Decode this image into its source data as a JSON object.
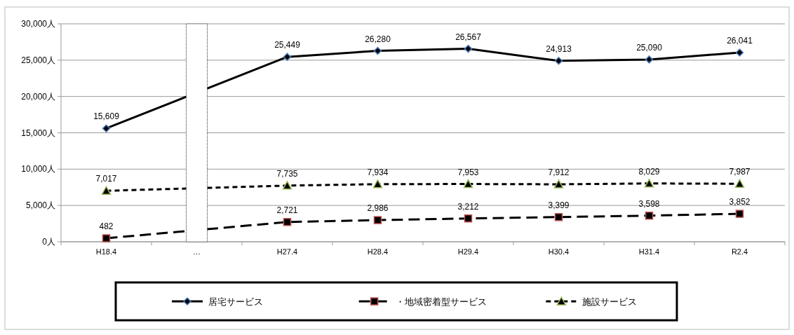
{
  "chart_data": {
    "type": "line",
    "categories": [
      "H18.4",
      "…",
      "H27.4",
      "H28.4",
      "H29.4",
      "H30.4",
      "H31.4",
      "R2.4"
    ],
    "series": [
      {
        "name": "居宅サービス",
        "color": "#4f81bd",
        "marker": "diamond",
        "line_style": "solid",
        "values": [
          15609,
          null,
          25449,
          26280,
          26567,
          24913,
          25090,
          26041
        ],
        "value_labels": [
          "15,609",
          null,
          "25,449",
          "26,280",
          "26,567",
          "24,913",
          "25,090",
          "26,041"
        ]
      },
      {
        "name": "・地域密着型サービス",
        "color": "#c0504d",
        "marker": "square",
        "line_style": "dashed",
        "values": [
          482,
          null,
          2721,
          2986,
          3212,
          3399,
          3598,
          3852
        ],
        "value_labels": [
          "482",
          null,
          "2,721",
          "2,986",
          "3,212",
          "3,399",
          "3,598",
          "3,852"
        ]
      },
      {
        "name": "施設サービス",
        "color": "#9bbb59",
        "marker": "triangle",
        "line_style": "dotted",
        "values": [
          7017,
          null,
          7735,
          7934,
          7953,
          7912,
          8029,
          7987
        ],
        "value_labels": [
          "7,017",
          null,
          "7,735",
          "7,934",
          "7,953",
          "7,912",
          "8,029",
          "7,987"
        ]
      }
    ],
    "ylim": [
      0,
      30000
    ],
    "yticks": [
      {
        "value": 0,
        "label": "0人"
      },
      {
        "value": 5000,
        "label": "5,000人"
      },
      {
        "value": 10000,
        "label": "10,000人"
      },
      {
        "value": 15000,
        "label": "15,000人"
      },
      {
        "value": 20000,
        "label": "20,000人"
      },
      {
        "value": 25000,
        "label": "25,000人"
      },
      {
        "value": 30000,
        "label": "30,000人"
      }
    ],
    "bands": [
      {
        "axis": "x",
        "from": "…",
        "to": "…",
        "color": "#ffffff"
      }
    ],
    "grid": "y",
    "legend": "bottom"
  }
}
